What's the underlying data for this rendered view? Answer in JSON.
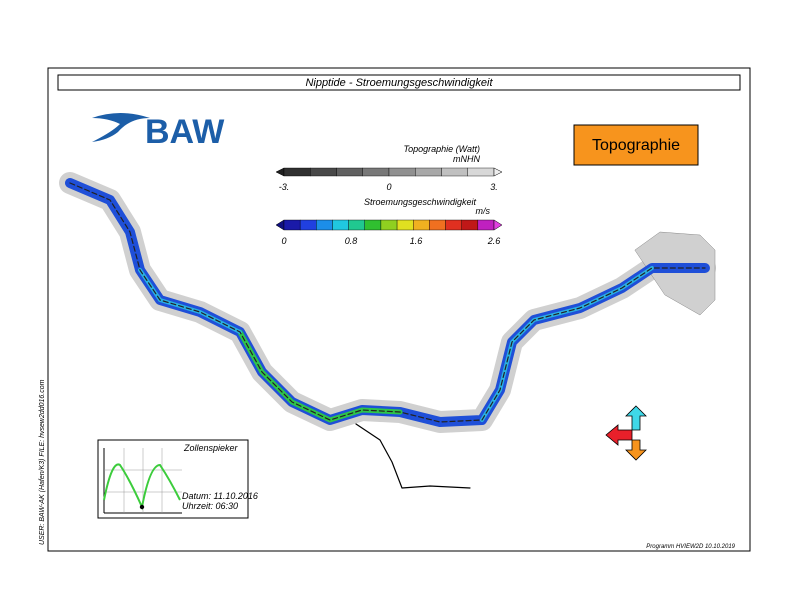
{
  "header": {
    "title": "Nipptide - Stroemungsgeschwindigkeit",
    "logo": "BAW",
    "label": "Topographie"
  },
  "legend": {
    "topography": {
      "title": "Topographie (Watt)",
      "unit": "mNHN",
      "ticks": [
        "-3.",
        "0",
        "3."
      ]
    },
    "velocity": {
      "title": "Stroemungsgeschwindigkeit",
      "unit": "m/s",
      "ticks": [
        "0",
        "0.8",
        "1.6",
        "2.6"
      ]
    }
  },
  "inset": {
    "station": "Zollenspieker",
    "date": "Datum: 11.10.2016",
    "time": "Uhrzeit: 06:30"
  },
  "side_text": "USER: BAW-AK (Hafen/K3)   FILE: hvsew2dd016.com",
  "footer": "Programm HVIEW2D   10.10.2019"
}
